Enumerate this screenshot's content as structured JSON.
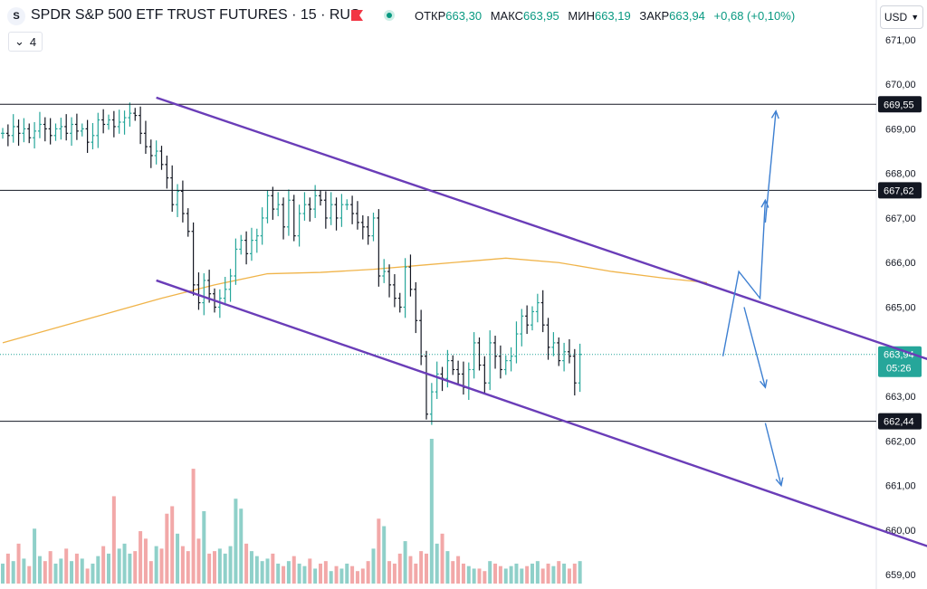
{
  "header": {
    "logo_letter": "S",
    "title": "SPDR S&P 500 ETF TRUST FUTURES · 15 · RUS",
    "ohlc": [
      {
        "key": "ОТКР",
        "value": "663,30"
      },
      {
        "key": "МАКС",
        "value": "663,95"
      },
      {
        "key": "МИН",
        "value": "663,19"
      },
      {
        "key": "ЗАКР",
        "value": "663,94"
      }
    ],
    "change": "+0,68 (+0,10%)",
    "indicator_count": "4",
    "currency": "USD"
  },
  "colors": {
    "up": "#26a69a",
    "down": "#131722",
    "vol_up": "#8fd0c9",
    "vol_down": "#f2a8a8",
    "channel": "#6a3db8",
    "ma": "#f0b44a",
    "arrows": "#3d7fd1",
    "level": "#131722",
    "price_tag": "#26a69a"
  },
  "chart_data": {
    "type": "candlestick",
    "y_axis": {
      "range": [
        658.8,
        671.2
      ],
      "ticks": [
        "659,00",
        "660,00",
        "661,00",
        "662,00",
        "663,00",
        "664,00",
        "665,00",
        "666,00",
        "667,00",
        "668,00",
        "669,00",
        "670,00",
        "671,00"
      ]
    },
    "levels": [
      {
        "label": "669,55",
        "value": 669.55
      },
      {
        "label": "667,62",
        "value": 667.62
      },
      {
        "label": "662,44",
        "value": 662.44
      }
    ],
    "last_price": {
      "label": "663,94",
      "countdown": "05:26",
      "value": 663.94
    },
    "bar_count": 110,
    "closes": [
      668.9,
      668.85,
      669.05,
      668.9,
      669.0,
      668.8,
      668.95,
      669.1,
      669.0,
      668.85,
      669.0,
      669.05,
      668.9,
      669.1,
      668.95,
      669.0,
      668.7,
      668.85,
      669.2,
      669.1,
      669.2,
      669.05,
      669.15,
      669.25,
      669.35,
      669.3,
      668.9,
      668.6,
      668.4,
      668.5,
      668.2,
      667.9,
      667.3,
      667.6,
      667.1,
      666.7,
      665.5,
      665.1,
      665.6,
      665.3,
      665.0,
      665.2,
      665.4,
      665.7,
      666.3,
      666.5,
      666.2,
      666.5,
      666.6,
      667.0,
      667.5,
      667.2,
      667.3,
      666.8,
      667.4,
      666.6,
      667.1,
      667.3,
      667.2,
      667.5,
      667.4,
      667.0,
      667.3,
      667.0,
      667.3,
      667.3,
      667.1,
      666.9,
      666.8,
      666.6,
      667.0,
      665.7,
      665.8,
      665.5,
      665.2,
      665.0,
      665.9,
      665.4,
      664.7,
      663.9,
      662.6,
      663.1,
      663.5,
      663.4,
      663.8,
      663.6,
      663.5,
      663.2,
      663.6,
      664.2,
      663.7,
      663.3,
      664.2,
      663.9,
      663.6,
      663.8,
      663.9,
      664.4,
      664.8,
      664.6,
      664.9,
      665.1,
      664.6,
      664.1,
      664.2,
      663.8,
      664.0,
      663.9,
      663.3,
      663.94
    ],
    "volumes": [
      0.8,
      1.2,
      0.9,
      1.6,
      1.0,
      0.7,
      2.2,
      1.1,
      0.9,
      1.3,
      0.8,
      1.0,
      1.4,
      0.9,
      1.2,
      1.0,
      0.6,
      0.8,
      1.1,
      1.5,
      1.2,
      3.5,
      1.4,
      1.6,
      1.2,
      1.3,
      2.1,
      1.8,
      0.9,
      1.5,
      1.4,
      2.8,
      3.1,
      2.0,
      1.5,
      1.3,
      4.6,
      1.8,
      2.9,
      1.2,
      1.3,
      1.4,
      1.2,
      1.5,
      3.4,
      3.0,
      1.6,
      1.3,
      1.1,
      0.9,
      1.0,
      1.2,
      0.8,
      0.7,
      0.9,
      1.1,
      0.8,
      0.7,
      1.0,
      0.6,
      0.8,
      0.9,
      0.5,
      0.7,
      0.6,
      0.8,
      0.7,
      0.5,
      0.6,
      0.9,
      1.4,
      2.6,
      2.3,
      0.9,
      0.8,
      1.2,
      1.7,
      1.1,
      0.8,
      1.3,
      1.2,
      5.8,
      1.6,
      2.0,
      1.3,
      0.9,
      1.1,
      0.8,
      0.7,
      0.6,
      0.6,
      0.5,
      0.9,
      0.8,
      0.7,
      0.6,
      0.7,
      0.8,
      0.6,
      0.7,
      0.8,
      0.9,
      0.6,
      0.8,
      0.7,
      0.9,
      0.8,
      0.6,
      0.8,
      0.9
    ],
    "moving_average": [
      [
        0,
        664.2
      ],
      [
        15,
        664.7
      ],
      [
        30,
        665.2
      ],
      [
        40,
        665.5
      ],
      [
        50,
        665.75
      ],
      [
        60,
        665.78
      ],
      [
        70,
        665.85
      ],
      [
        80,
        665.95
      ],
      [
        95,
        666.1
      ],
      [
        105,
        666.0
      ],
      [
        115,
        665.8
      ],
      [
        125,
        665.65
      ],
      [
        133,
        665.55
      ]
    ],
    "channel": [
      {
        "from": [
          29,
          669.7
        ],
        "to": [
          178,
          663.7
        ]
      },
      {
        "from": [
          29,
          665.6
        ],
        "to": [
          178,
          659.5
        ]
      }
    ],
    "projection_arrows": [
      [
        [
          136,
          663.9
        ],
        [
          139,
          665.8
        ],
        [
          143,
          665.2
        ],
        [
          144,
          667.4
        ]
      ],
      [
        [
          140,
          665.0
        ],
        [
          144,
          663.2
        ]
      ],
      [
        [
          144,
          666.9
        ],
        [
          146,
          669.4
        ]
      ],
      [
        [
          144,
          662.4
        ],
        [
          147,
          661.0
        ]
      ]
    ]
  }
}
